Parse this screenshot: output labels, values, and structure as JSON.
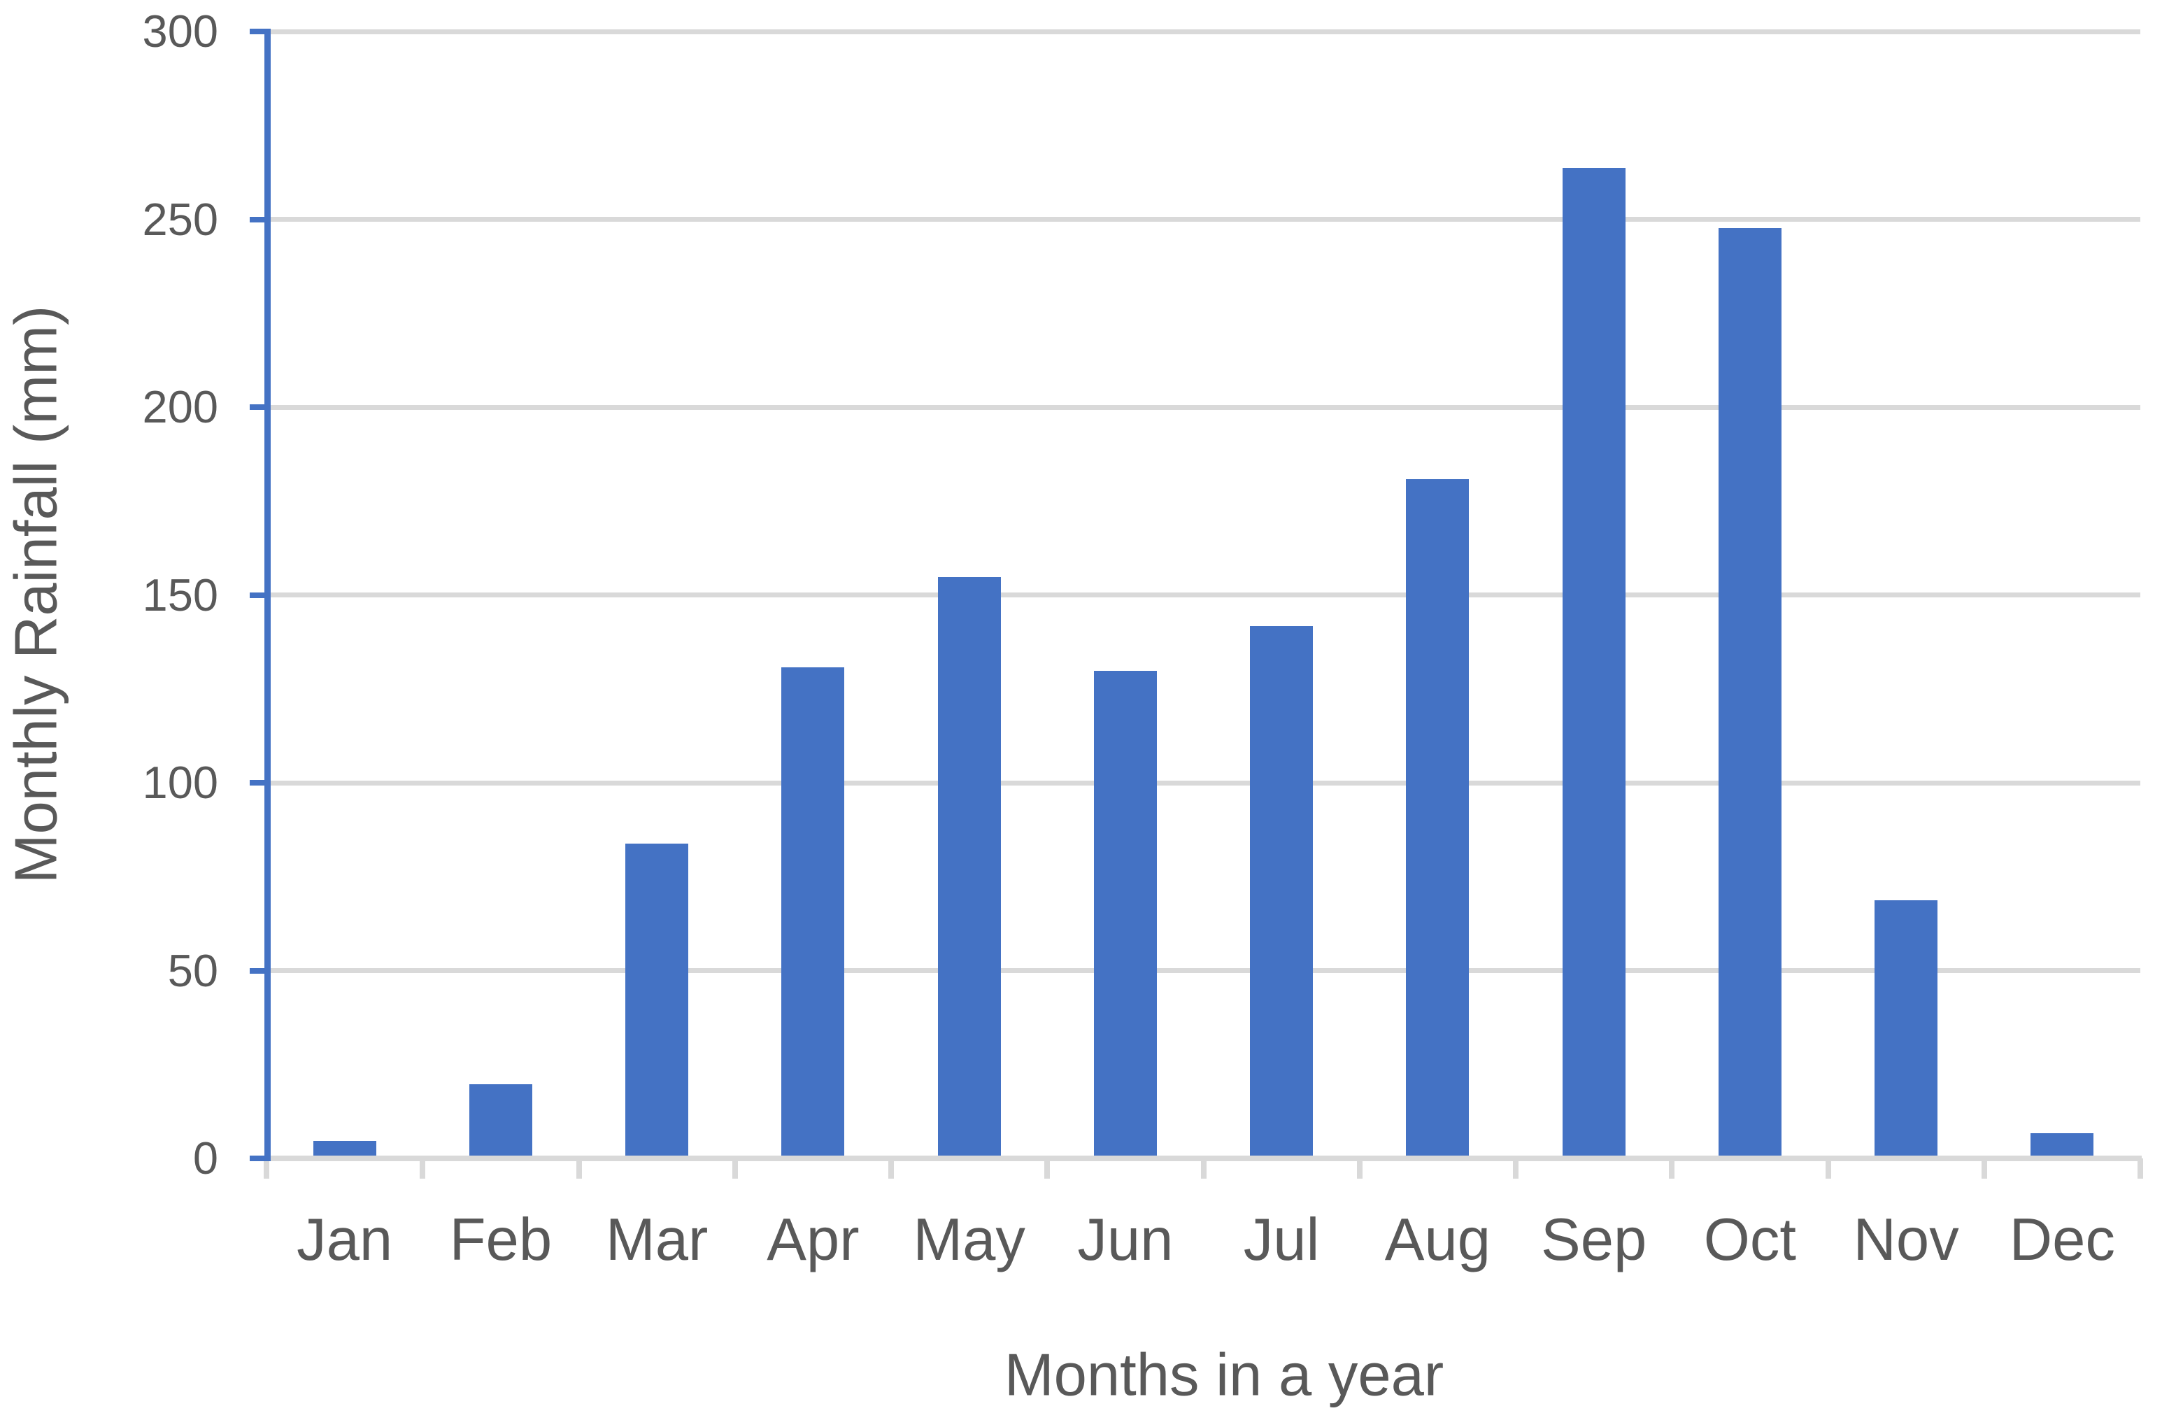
{
  "chart_data": {
    "type": "bar",
    "title": "",
    "categories": [
      "Jan",
      "Feb",
      "Mar",
      "Apr",
      "May",
      "Jun",
      "Jul",
      "Aug",
      "Sep",
      "Oct",
      "Nov",
      "Dec"
    ],
    "values": [
      4,
      19,
      83,
      130,
      154,
      129,
      141,
      180,
      263,
      247,
      68,
      6
    ],
    "xlabel": "Months in a year",
    "ylabel": "Monthly Rainfall (mm)",
    "y_ticks": [
      0,
      50,
      100,
      150,
      200,
      250,
      300
    ],
    "ylim": [
      0,
      300
    ],
    "grid": "horizontal-gridlines-on",
    "legend": "none",
    "bar_color": "#4472C4",
    "y_axis_line_color": "#4472C4",
    "x_axis_line_color": "#D9D9D9",
    "gridline_color": "#D9D9D9",
    "text_color": "#595959",
    "background_color": "#FFFFFF"
  }
}
